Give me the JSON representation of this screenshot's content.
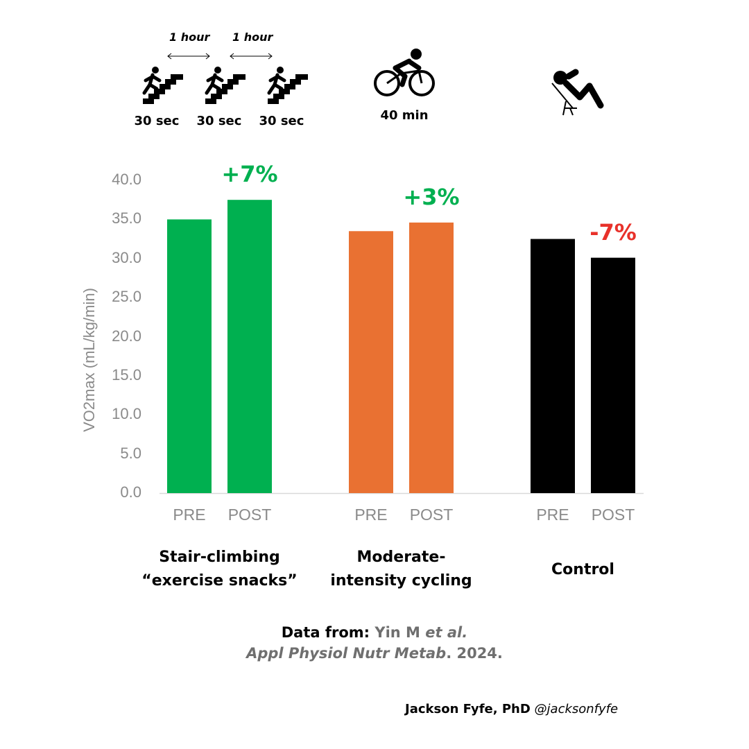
{
  "protocols": {
    "stairs": {
      "interval_labels": [
        "1 hour",
        "1 hour"
      ],
      "bout_labels": [
        "30 sec",
        "30 sec",
        "30 sec"
      ],
      "icon": "stair-climbing-icon"
    },
    "cycling": {
      "duration_label": "40 min",
      "icon": "cycling-icon"
    },
    "control": {
      "icon": "reclining-person-icon"
    }
  },
  "chart_data": {
    "type": "bar",
    "ylabel": "VO2max (mL/kg/min)",
    "ylim": [
      0,
      40
    ],
    "yticks": [
      "0.0",
      "5.0",
      "10.0",
      "15.0",
      "20.0",
      "25.0",
      "30.0",
      "35.0",
      "40.0"
    ],
    "groups": [
      {
        "name_lines": [
          "Stair-climbing",
          "“exercise snacks”"
        ],
        "categories": [
          "PRE",
          "POST"
        ],
        "values": [
          35.0,
          37.5
        ],
        "color": "#00b050",
        "change_label": "+7%",
        "change_color": "#00b050"
      },
      {
        "name_lines": [
          "Moderate-",
          "intensity cycling"
        ],
        "categories": [
          "PRE",
          "POST"
        ],
        "values": [
          33.5,
          34.6
        ],
        "color": "#e97132",
        "change_label": "+3%",
        "change_color": "#00b050"
      },
      {
        "name_lines": [
          "Control"
        ],
        "categories": [
          "PRE",
          "POST"
        ],
        "values": [
          32.5,
          30.1
        ],
        "color": "#000000",
        "change_label": "-7%",
        "change_color": "#e8312a"
      }
    ],
    "grid": false
  },
  "citation": {
    "prefix": "Data from:",
    "authors": "Yin M",
    "etal": "et al.",
    "journal": "Appl Physiol Nutr Metab",
    "year": ". 2024."
  },
  "credit": {
    "name": "Jackson Fyfe, PhD",
    "handle": "@jacksonfyfe"
  }
}
